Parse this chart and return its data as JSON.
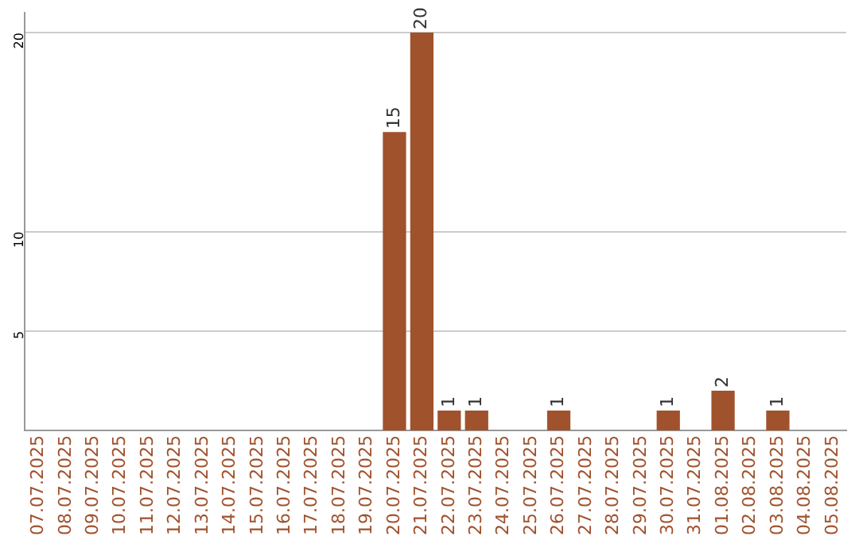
{
  "chart_data": {
    "type": "bar",
    "categories": [
      "07.07.2025",
      "08.07.2025",
      "09.07.2025",
      "10.07.2025",
      "11.07.2025",
      "12.07.2025",
      "13.07.2025",
      "14.07.2025",
      "15.07.2025",
      "16.07.2025",
      "17.07.2025",
      "18.07.2025",
      "19.07.2025",
      "20.07.2025",
      "21.07.2025",
      "22.07.2025",
      "23.07.2025",
      "24.07.2025",
      "25.07.2025",
      "26.07.2025",
      "27.07.2025",
      "28.07.2025",
      "29.07.2025",
      "30.07.2025",
      "31.07.2025",
      "01.08.2025",
      "02.08.2025",
      "03.08.2025",
      "04.08.2025",
      "05.08.2025"
    ],
    "values": [
      0,
      0,
      0,
      0,
      0,
      0,
      0,
      0,
      0,
      0,
      0,
      0,
      0,
      15,
      20,
      1,
      1,
      0,
      0,
      1,
      0,
      0,
      0,
      1,
      0,
      2,
      0,
      1,
      0,
      0
    ],
    "value_labels": [
      null,
      null,
      null,
      null,
      null,
      null,
      null,
      null,
      null,
      null,
      null,
      null,
      null,
      "15",
      "20",
      "1",
      "1",
      null,
      null,
      "1",
      null,
      null,
      null,
      "1",
      null,
      "2",
      null,
      "1",
      null,
      null
    ],
    "color": "#a0522d",
    "ylim": [
      0,
      21
    ],
    "yticks": [
      5,
      10,
      20
    ],
    "grid": "y",
    "legend": false
  }
}
